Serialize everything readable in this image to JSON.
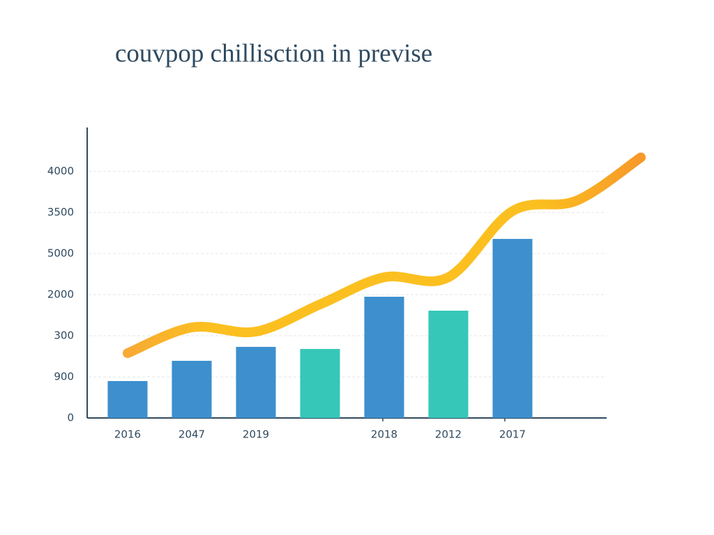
{
  "chart_data": {
    "type": "bar",
    "title": "couvpop chillisction in previse",
    "categories": [
      "2016",
      "2047",
      "2019",
      null,
      "2018",
      "2012",
      "2017",
      null,
      null
    ],
    "series": [
      {
        "type": "bar",
        "values": [
          599,
          927,
          1153,
          1119,
          1966,
          1740,
          2904,
          null,
          null
        ],
        "colors": [
          "#3d8fce",
          "#3d8fce",
          "#3d8fce",
          "#36c7b8",
          "#3d8fce",
          "#36c7b8",
          "#3d8fce",
          null,
          null
        ]
      },
      {
        "type": "line",
        "color": "#fbbc14",
        "values": [
          1051,
          1469,
          1401,
          1842,
          2282,
          2282,
          3356,
          3525,
          4226
        ]
      }
    ],
    "ylim": [
      0,
      4700
    ],
    "yticks": [
      0,
      {
        "value": 667,
        "label": "900"
      },
      {
        "value": 1333,
        "label": "300"
      },
      2000,
      {
        "value": 2667,
        "label": "5000"
      },
      {
        "value": 3333,
        "label": "3500"
      },
      4000
    ],
    "grid": true
  }
}
